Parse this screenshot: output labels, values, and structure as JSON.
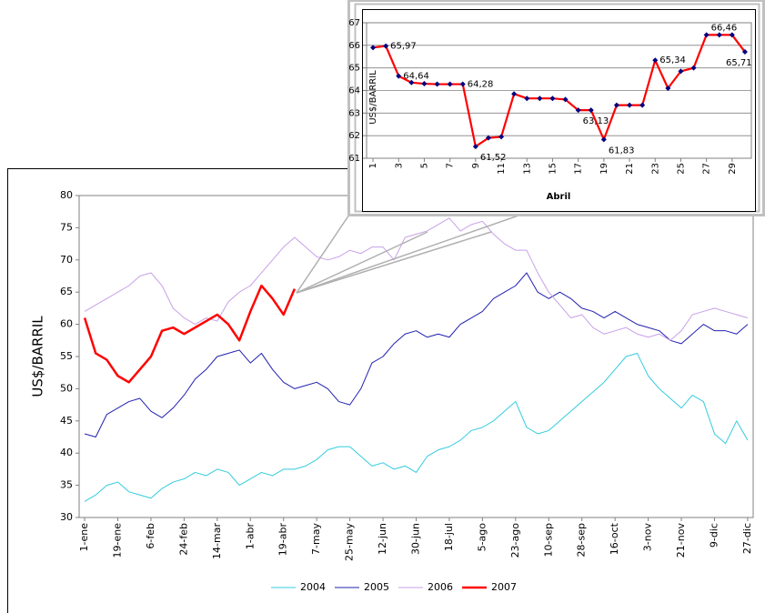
{
  "chart_data": [
    {
      "type": "line",
      "y_label": "US$/BARRIL",
      "categories": [
        "1-ene",
        null,
        null,
        "19-ene",
        null,
        null,
        "6-feb",
        null,
        null,
        "24-feb",
        null,
        null,
        "14-mar",
        null,
        null,
        "1-abr",
        null,
        null,
        "19-abr",
        null,
        null,
        "7-may",
        null,
        null,
        "25-may",
        null,
        null,
        "12-jun",
        null,
        null,
        "30-jun",
        null,
        null,
        "18-jul",
        null,
        null,
        "5-ago",
        null,
        null,
        "23-ago",
        null,
        null,
        "10-sep",
        null,
        null,
        "28-sep",
        null,
        null,
        "16-oct",
        null,
        null,
        "3-nov",
        null,
        null,
        "21-nov",
        null,
        null,
        "9-dic",
        null,
        null,
        "27-dic"
      ],
      "series": [
        {
          "name": "2004",
          "color": "#33ccdd",
          "values": [
            32.5,
            33.5,
            35,
            35.5,
            34,
            33.5,
            33,
            34.5,
            35.5,
            36,
            37,
            36.5,
            37.5,
            37,
            35,
            36,
            37,
            36.5,
            37.5,
            37.5,
            38,
            39,
            40.5,
            41,
            41,
            39.5,
            38,
            38.5,
            37.5,
            38,
            37,
            39.5,
            40.5,
            41,
            42,
            43.5,
            44,
            45,
            46.5,
            48,
            44,
            43,
            43.5,
            45,
            46.5,
            48,
            49.5,
            51,
            53,
            55,
            55.5,
            52,
            50,
            48.5,
            47,
            49,
            48,
            43,
            41.5,
            45,
            42
          ]
        },
        {
          "name": "2005",
          "color": "#2020b0",
          "values": [
            43,
            42.5,
            46,
            47,
            48,
            48.5,
            46.5,
            45.5,
            47,
            49,
            51.5,
            53,
            55,
            55.5,
            56,
            54,
            55.5,
            53,
            51,
            50,
            50.5,
            51,
            50,
            48,
            47.5,
            50,
            54,
            55,
            57,
            58.5,
            59,
            58,
            58.5,
            58,
            60,
            61,
            62,
            64,
            65,
            66,
            68,
            65,
            64,
            65,
            64,
            62.5,
            62,
            61,
            62,
            61,
            60,
            59.5,
            59,
            57.5,
            57,
            58.5,
            60,
            59,
            59,
            58.5,
            60
          ]
        },
        {
          "name": "2006",
          "color": "#c8a0e8",
          "values": [
            62,
            63,
            64,
            65,
            66,
            67.5,
            68,
            66,
            62.5,
            61,
            60,
            61,
            60.5,
            63.5,
            65,
            66,
            68,
            70,
            72,
            73.5,
            72,
            70.5,
            70,
            70.5,
            71.5,
            71,
            72,
            72,
            70,
            73.5,
            74,
            74.5,
            75.5,
            76.5,
            74.5,
            75.5,
            76,
            74,
            72.5,
            71.5,
            71.5,
            68,
            65,
            63,
            61,
            61.5,
            59.5,
            58.5,
            59,
            59.5,
            58.5,
            58,
            58.5,
            57.5,
            59,
            61.5,
            62,
            62.5,
            62,
            61.5,
            61
          ]
        },
        {
          "name": "2007",
          "color": "#ff0000",
          "values": [
            61,
            55.5,
            54.5,
            52,
            51,
            53,
            55,
            59,
            59.5,
            58.5,
            59.5,
            60.5,
            61.5,
            60,
            57.5,
            62,
            66,
            64,
            61.5,
            65.5,
            null,
            null,
            null,
            null,
            null,
            null,
            null,
            null,
            null,
            null,
            null,
            null,
            null,
            null,
            null,
            null,
            null,
            null,
            null,
            null,
            null,
            null,
            null,
            null,
            null,
            null,
            null,
            null,
            null,
            null,
            null,
            null,
            null,
            null,
            null,
            null,
            null,
            null,
            null,
            null,
            null
          ]
        }
      ],
      "ylim": [
        30,
        80
      ],
      "yticks": [
        30,
        35,
        40,
        45,
        50,
        55,
        60,
        65,
        70,
        75,
        80
      ],
      "grid": false,
      "legend": "bottom"
    },
    {
      "type": "line",
      "x_label": "Abril",
      "y_label": "US$/BARRIL",
      "categories": [
        "1",
        null,
        "3",
        null,
        "5",
        null,
        "7",
        null,
        "9",
        null,
        "11",
        null,
        "13",
        null,
        "15",
        null,
        "17",
        null,
        "19",
        null,
        "21",
        null,
        "23",
        null,
        "25",
        null,
        "27",
        null,
        "29",
        null
      ],
      "series": [
        {
          "name": null,
          "color": "#ff0000",
          "marker_color": "#000080",
          "values": [
            65.9,
            65.97,
            64.64,
            64.35,
            64.3,
            64.28,
            64.28,
            64.28,
            61.52,
            61.9,
            61.95,
            63.85,
            63.65,
            63.65,
            63.65,
            63.6,
            63.13,
            63.13,
            61.83,
            63.35,
            63.35,
            63.35,
            65.34,
            64.1,
            64.85,
            65.0,
            66.46,
            66.46,
            66.46,
            65.71
          ],
          "value_labels": [
            null,
            "65,97",
            "64,64",
            null,
            null,
            null,
            null,
            "64,28",
            "61,52",
            null,
            null,
            null,
            null,
            null,
            null,
            null,
            "63,13",
            null,
            "61,83",
            null,
            null,
            null,
            "65,34",
            null,
            null,
            null,
            "66,46",
            null,
            null,
            "65,71"
          ]
        }
      ],
      "ylim": [
        61,
        67
      ],
      "yticks": [
        61,
        62,
        63,
        64,
        65,
        66,
        67
      ],
      "grid": true
    }
  ]
}
